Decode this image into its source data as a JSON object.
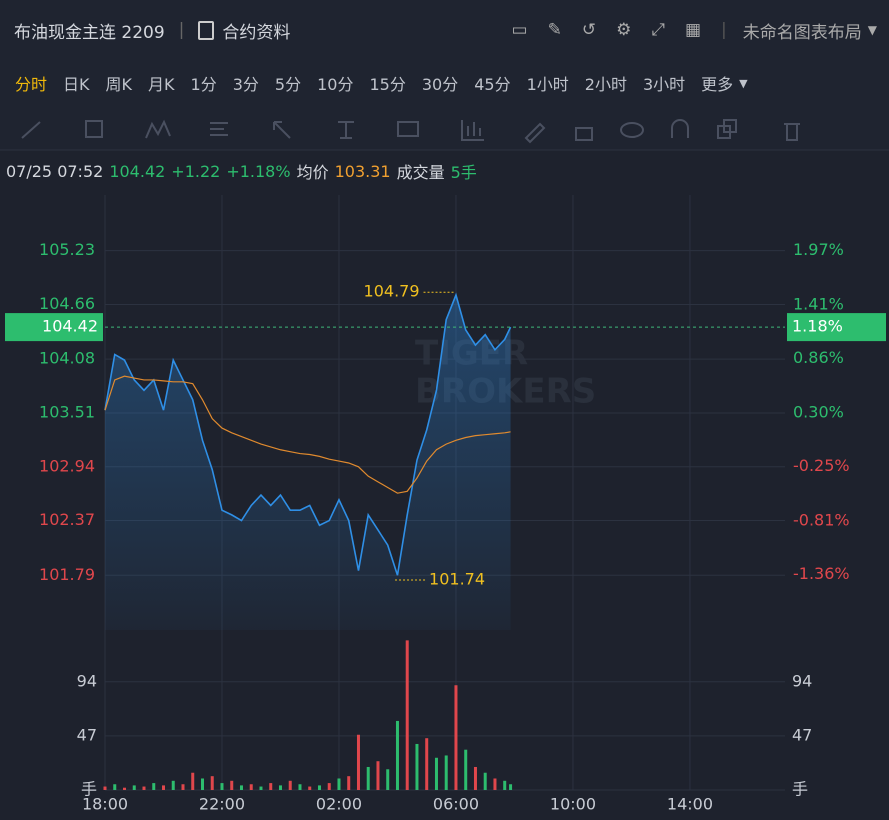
{
  "header": {
    "title": "布油现金主连 2209",
    "contract": "合约资料",
    "layout": "未命名图表布局"
  },
  "tabs": [
    "分时",
    "日K",
    "周K",
    "月K",
    "1分",
    "3分",
    "5分",
    "10分",
    "15分",
    "30分",
    "45分",
    "1小时",
    "2小时",
    "3小时",
    "更多"
  ],
  "active_tab": 0,
  "quote": {
    "time": "07/25 07:52",
    "last": "104.42",
    "change": "+1.22",
    "change_pct": "+1.18%",
    "avg_label": "均价",
    "avg": "103.31",
    "volume_label": "成交量",
    "volume": "5手"
  },
  "chart_data": {
    "type": "line",
    "x": [
      "18:00",
      "18:20",
      "18:40",
      "19:00",
      "19:20",
      "19:40",
      "20:00",
      "20:20",
      "20:40",
      "21:00",
      "21:20",
      "21:40",
      "22:00",
      "22:20",
      "22:40",
      "23:00",
      "23:20",
      "23:40",
      "00:00",
      "00:20",
      "00:40",
      "01:00",
      "01:20",
      "01:40",
      "02:00",
      "02:20",
      "02:40",
      "03:00",
      "03:20",
      "03:40",
      "04:00",
      "04:20",
      "04:40",
      "05:00",
      "05:20",
      "05:40",
      "06:00",
      "06:20",
      "06:40",
      "07:00",
      "07:20",
      "07:40",
      "07:52"
    ],
    "series": [
      {
        "color": "#2f8fe6",
        "values": [
          103.54,
          104.13,
          104.07,
          103.86,
          103.75,
          103.86,
          103.54,
          104.07,
          103.86,
          103.65,
          103.22,
          102.91,
          102.48,
          102.43,
          102.37,
          102.53,
          102.64,
          102.53,
          102.64,
          102.48,
          102.48,
          102.53,
          102.32,
          102.37,
          102.59,
          102.37,
          101.84,
          102.43,
          102.27,
          102.11,
          101.79,
          102.43,
          103.01,
          103.33,
          103.75,
          104.5,
          104.76,
          104.39,
          104.23,
          104.34,
          104.18,
          104.29,
          104.42
        ]
      },
      {
        "color": "#e08a2e",
        "values": [
          103.54,
          103.86,
          103.9,
          103.88,
          103.86,
          103.86,
          103.85,
          103.84,
          103.84,
          103.82,
          103.65,
          103.45,
          103.35,
          103.3,
          103.26,
          103.22,
          103.18,
          103.15,
          103.12,
          103.1,
          103.08,
          103.07,
          103.05,
          103.02,
          103.0,
          102.98,
          102.94,
          102.84,
          102.78,
          102.72,
          102.66,
          102.68,
          102.82,
          103.0,
          103.12,
          103.18,
          103.22,
          103.25,
          103.27,
          103.28,
          103.29,
          103.3,
          103.31
        ]
      }
    ],
    "xlim": [
      "18:00",
      "17:15"
    ],
    "xticks": [
      "18:00",
      "22:00",
      "02:00",
      "06:00",
      "10:00",
      "14:00"
    ],
    "ylim": [
      101.21,
      105.82
    ],
    "yticks": [
      105.23,
      104.66,
      104.08,
      103.51,
      102.94,
      102.37,
      101.79
    ],
    "y2lim": [
      -1.93,
      2.54
    ],
    "y2ticks": [
      {
        "value": 1.97,
        "label": "1.97%"
      },
      {
        "value": 1.41,
        "label": "1.41%"
      },
      {
        "value": 0.86,
        "label": "0.86%"
      },
      {
        "value": 0.3,
        "label": "0.30%"
      },
      {
        "value": -0.25,
        "label": "-0.25%"
      },
      {
        "value": -0.81,
        "label": "-0.81%"
      },
      {
        "value": -1.36,
        "label": "-1.36%"
      }
    ],
    "current": {
      "value": 104.42,
      "pct": {
        "value": 1.18,
        "label": "1.18%"
      }
    },
    "annotations": [
      {
        "x": "05:55",
        "value": 104.79
      },
      {
        "x": "03:55",
        "value": 101.74
      }
    ],
    "watermark": [
      "TIGER",
      "BROKERS"
    ],
    "grid": true,
    "up_color": "#2dbd6e",
    "down_color": "#e0474c",
    "volume": {
      "values": [
        3,
        5,
        2,
        4,
        3,
        6,
        4,
        8,
        5,
        15,
        10,
        12,
        6,
        8,
        4,
        5,
        3,
        6,
        4,
        8,
        5,
        3,
        4,
        6,
        10,
        12,
        48,
        20,
        25,
        18,
        60,
        130,
        40,
        45,
        28,
        30,
        91,
        35,
        20,
        15,
        10,
        8,
        5
      ],
      "colors": [
        "#e0474c",
        "#2dbd6e",
        "#e0474c",
        "#2dbd6e",
        "#e0474c",
        "#2dbd6e",
        "#e0474c",
        "#2dbd6e",
        "#e0474c",
        "#e0474c",
        "#2dbd6e",
        "#e0474c",
        "#2dbd6e",
        "#e0474c",
        "#2dbd6e",
        "#e0474c",
        "#2dbd6e",
        "#e0474c",
        "#2dbd6e",
        "#e0474c",
        "#2dbd6e",
        "#e0474c",
        "#2dbd6e",
        "#e0474c",
        "#2dbd6e",
        "#e0474c",
        "#e0474c",
        "#2dbd6e",
        "#e0474c",
        "#2dbd6e",
        "#2dbd6e",
        "#e0474c",
        "#2dbd6e",
        "#e0474c",
        "#2dbd6e",
        "#2dbd6e",
        "#e0474c",
        "#2dbd6e",
        "#e0474c",
        "#2dbd6e",
        "#e0474c",
        "#2dbd6e",
        "#2dbd6e"
      ],
      "ylim": [
        0,
        139
      ],
      "yticks": [
        {
          "value": 0,
          "label": "手"
        },
        47,
        94
      ]
    }
  }
}
